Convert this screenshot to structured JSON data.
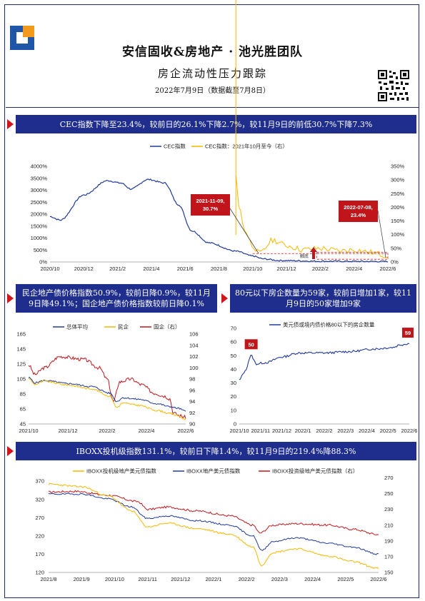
{
  "header": {
    "title": "安信固收&房地产 · 池光胜团队",
    "subtitle": "房企流动性压力跟踪",
    "date": "2022年7月9日（数据截至7月8日）"
  },
  "colors": {
    "navy": "#1f2e8c",
    "blue": "#1f3a9c",
    "gold": "#f5b800",
    "red": "#c0151b"
  },
  "banners": {
    "b1": "CEC指数下降至23.4%，较前日的26.1%下降2.7%，较11月9日的前低30.7%下降7.3%",
    "b2": "民企地产债价格指数50.9%，较前日降0.9%，较11月9日降49.1%；国企地产债价格指数较前日降0.1%",
    "b3": "80元以下房企数量为59家，较前日增加1家，较11月9日的50家增加9家",
    "b4": "IBOXX投机级指数131.1%，较前日下降1.4%，较11月9日的219.4%降88.3%"
  },
  "chart_data": [
    {
      "type": "line",
      "legend": [
        "CEC指数",
        "CEC指数：2021年10月至今（右）"
      ],
      "xticks": [
        "2020/10",
        "2020/12",
        "2021/2",
        "2021/4",
        "2021/6",
        "2021/8",
        "2021/10",
        "2021/12",
        "2022/2",
        "2022/4",
        "2022/6"
      ],
      "yticks_left": [
        "0%",
        "500%",
        "1000%",
        "1500%",
        "2000%",
        "2500%",
        "3000%",
        "3500%",
        "4000%"
      ],
      "yticks_right": [
        "0%",
        "50%",
        "100%",
        "150%",
        "200%",
        "250%",
        "300%",
        "350%"
      ],
      "ylim_left": [
        0,
        4000
      ],
      "ylim_right": [
        0,
        350
      ],
      "annotations": [
        {
          "text1": "2021-11-09,",
          "text2": "30.7%"
        },
        {
          "text1": "2022-07-08,",
          "text2": "23.4%"
        }
      ],
      "small_note": "触底"
    },
    {
      "type": "line",
      "legend": [
        "总体平均",
        "民企",
        "国企（右）"
      ],
      "xticks": [
        "2021/10",
        "2021/12",
        "2022/2",
        "2022/4",
        "2022/6"
      ],
      "yticks_left": [
        "45",
        "65",
        "85",
        "105",
        "125",
        "145",
        "165"
      ],
      "yticks_right": [
        "90",
        "92",
        "94",
        "96",
        "98",
        "100",
        "102",
        "104",
        "106"
      ],
      "ylim_left": [
        45,
        165
      ],
      "ylim_right": [
        90,
        106
      ]
    },
    {
      "type": "line",
      "legend": [
        "美元债或境内债价格80以下的房企数量"
      ],
      "xticks": [
        "2021/10",
        "2021/11",
        "2021/12",
        "2022/1",
        "2022/2",
        "2022/3",
        "2022/4",
        "2022/5",
        "2022/6"
      ],
      "yticks": [
        "0",
        "10",
        "20",
        "30",
        "40",
        "50",
        "60",
        "70"
      ],
      "ylim": [
        0,
        70
      ],
      "labels": [
        "50",
        "59"
      ]
    },
    {
      "type": "line",
      "legend": [
        "IBOXX投机级地产美元债指数",
        "IBOXX地产美元债指数",
        "IBOXX投资级地产美元债指数（右）"
      ],
      "xticks": [
        "2021/8",
        "2021/9",
        "2021/10",
        "2021/11",
        "2021/12",
        "2022/1",
        "2022/2",
        "2022/3",
        "2022/4",
        "2022/5",
        "2022/6"
      ],
      "yticks_left": [
        "120",
        "170",
        "220",
        "270",
        "320",
        "370"
      ],
      "yticks_right": [
        "150",
        "170",
        "190",
        "210",
        "230",
        "250",
        "270"
      ],
      "ylim_left": [
        120,
        390
      ],
      "ylim_right": [
        150,
        275
      ]
    }
  ]
}
